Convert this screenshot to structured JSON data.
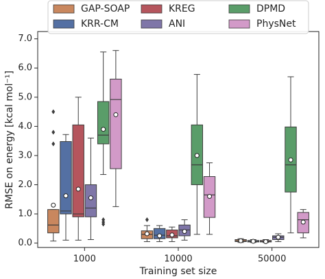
{
  "chart_data": {
    "type": "box",
    "xlabel": "Training set size",
    "ylabel": "RMSE on energy [kcal mol⁻¹]",
    "categories": [
      "1000",
      "10000",
      "50000"
    ],
    "ylim": [
      -0.15,
      7.25
    ],
    "yticks": [
      {
        "value": 0,
        "label": "0.0"
      },
      {
        "value": 1,
        "label": "1.0"
      },
      {
        "value": 2,
        "label": "2.0"
      },
      {
        "value": 3,
        "label": "3.0"
      },
      {
        "value": 4,
        "label": "4.0"
      },
      {
        "value": 5,
        "label": "5.0"
      },
      {
        "value": 6,
        "label": "6.0"
      },
      {
        "value": 7,
        "label": "7.0"
      }
    ],
    "series": [
      {
        "name": "GAP-SOAP",
        "color": "#c9875e",
        "low": [
          0.07,
          0.05,
          0.02
        ],
        "q1": [
          0.35,
          0.15,
          0.05
        ],
        "median": [
          0.62,
          0.3,
          0.08
        ],
        "q3": [
          1.15,
          0.42,
          0.12
        ],
        "high": [
          1.15,
          0.6,
          0.15
        ],
        "mean": [
          1.3,
          0.32,
          0.08
        ],
        "outliers": [
          [
            4.5,
            3.8,
            3.4
          ],
          [
            0.8
          ],
          []
        ]
      },
      {
        "name": "KRR-CM",
        "color": "#5470a3",
        "low": [
          0.1,
          0.05,
          0.02
        ],
        "q1": [
          1.0,
          0.15,
          0.04
        ],
        "median": [
          1.1,
          0.27,
          0.06
        ],
        "q3": [
          3.48,
          0.5,
          0.09
        ],
        "high": [
          3.72,
          0.6,
          0.12
        ],
        "mean": [
          1.62,
          0.25,
          0.06
        ],
        "outliers": [
          [],
          [],
          []
        ]
      },
      {
        "name": "KREG",
        "color": "#b5555d",
        "low": [
          0.1,
          0.05,
          0.02
        ],
        "q1": [
          0.9,
          0.18,
          0.04
        ],
        "median": [
          1.0,
          0.25,
          0.06
        ],
        "q3": [
          4.05,
          0.45,
          0.09
        ],
        "high": [
          5.0,
          0.55,
          0.12
        ],
        "mean": [
          1.85,
          0.28,
          0.05
        ],
        "outliers": [
          [],
          [],
          []
        ]
      },
      {
        "name": "ANI",
        "color": "#7f76a8",
        "low": [
          0.12,
          0.1,
          0.05
        ],
        "q1": [
          0.9,
          0.25,
          0.12
        ],
        "median": [
          1.2,
          0.45,
          0.2
        ],
        "q3": [
          2.0,
          0.62,
          0.25
        ],
        "high": [
          3.6,
          0.8,
          0.32
        ],
        "mean": [
          1.55,
          0.4,
          0.2
        ],
        "outliers": [
          [],
          [],
          []
        ]
      },
      {
        "name": "DPMD",
        "color": "#5a9d69",
        "low": [
          2.35,
          0.3,
          0.35
        ],
        "q1": [
          3.4,
          2.0,
          1.75
        ],
        "median": [
          3.7,
          2.68,
          2.68
        ],
        "q3": [
          4.85,
          4.05,
          3.98
        ],
        "high": [
          6.55,
          5.78,
          5.7
        ],
        "mean": [
          3.9,
          3.0,
          2.85
        ],
        "outliers": [
          [
            0.65,
            0.72,
            0.8
          ],
          [],
          []
        ]
      },
      {
        "name": "PhysNet",
        "color": "#d29ac8",
        "low": [
          1.25,
          0.3,
          0.18
        ],
        "q1": [
          2.55,
          0.88,
          0.35
        ],
        "median": [
          4.92,
          1.65,
          0.8
        ],
        "q3": [
          5.62,
          2.28,
          1.05
        ],
        "high": [
          6.6,
          2.75,
          1.15
        ],
        "mean": [
          4.4,
          1.6,
          0.72
        ],
        "outliers": [
          [],
          [],
          []
        ]
      }
    ]
  }
}
